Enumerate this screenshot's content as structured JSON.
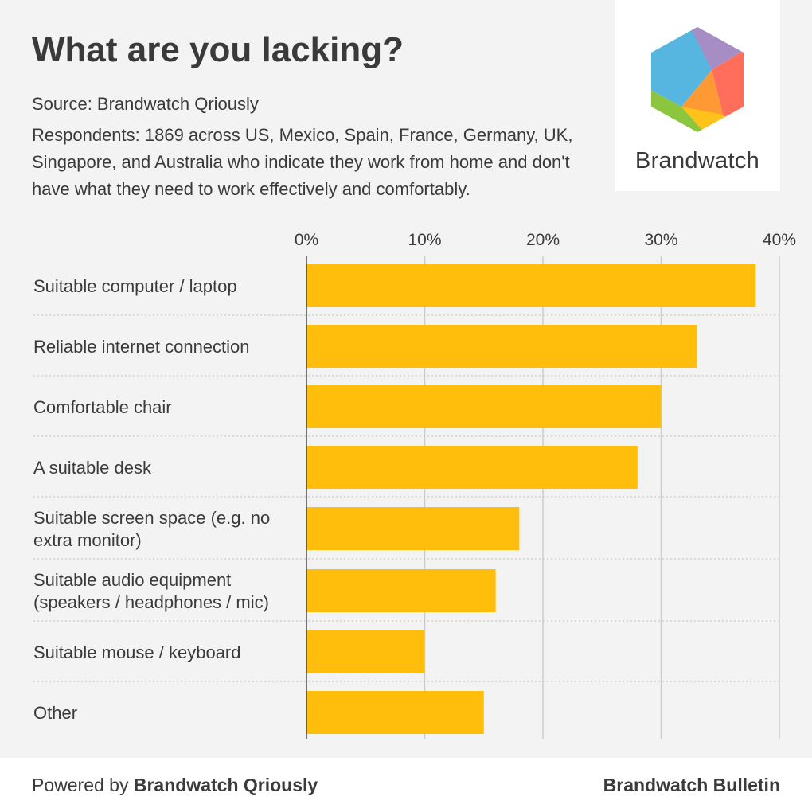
{
  "header": {
    "title": "What are you lacking?",
    "source": "Source: Brandwatch Qriously",
    "respondents": "Respondents: 1869 across US, Mexico, Spain, France, Germany, UK, Singapore, and Australia who indicate they work from home and don't have what they need to work effectively and comfortably."
  },
  "logo": {
    "wordmark": "Brandwatch",
    "colors": [
      "#56b6e0",
      "#a68ec4",
      "#ff6e5a",
      "#ff9933",
      "#ffc21a",
      "#8cc63f"
    ]
  },
  "chart_data": {
    "type": "bar",
    "orientation": "horizontal",
    "categories": [
      "Suitable computer / laptop",
      "Reliable internet connection",
      "Comfortable chair",
      "A suitable desk",
      "Suitable screen space (e.g. no extra monitor)",
      "Suitable audio equipment (speakers / headphones / mic)",
      "Suitable mouse / keyboard",
      "Other"
    ],
    "values": [
      38,
      33,
      30,
      28,
      18,
      16,
      10,
      15
    ],
    "xlim": [
      0,
      40
    ],
    "ticks": [
      0,
      10,
      20,
      30,
      40
    ],
    "tick_labels": [
      "0%",
      "10%",
      "20%",
      "30%",
      "40%"
    ],
    "grid": true,
    "bar_color": "#ffbe0b"
  },
  "footer": {
    "powered_prefix": "Powered by ",
    "powered_brand": "Brandwatch Qriously",
    "right": "Brandwatch Bulletin"
  }
}
